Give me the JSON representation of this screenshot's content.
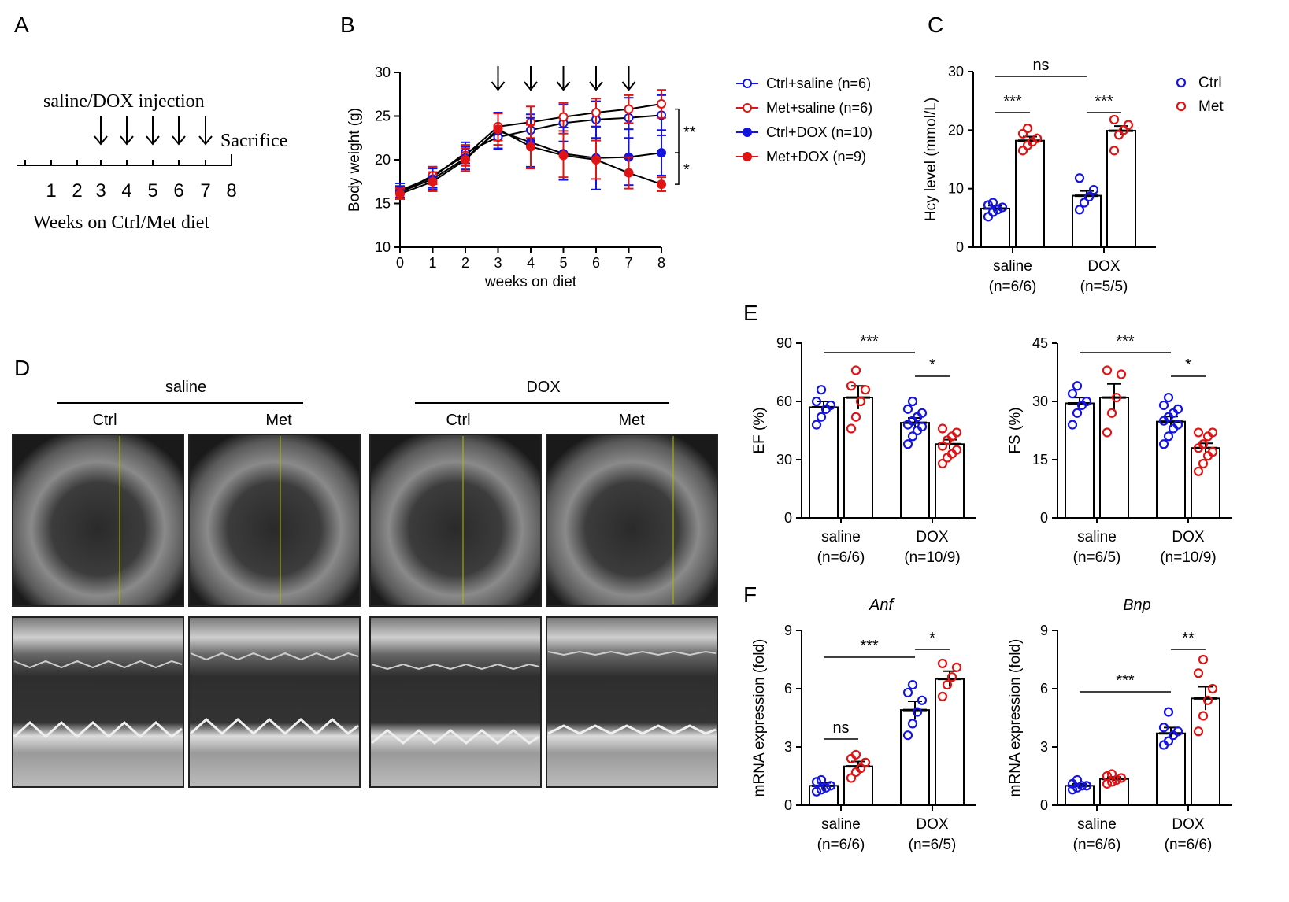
{
  "panels": {
    "A": {
      "letter": "A",
      "injection_label": "saline/DOX injection",
      "sacrifice_label": "Sacrifice",
      "weeks": [
        "1",
        "2",
        "3",
        "4",
        "5",
        "6",
        "7",
        "8"
      ],
      "axis_label": "Weeks on Ctrl/Met diet"
    },
    "B": {
      "letter": "B"
    },
    "C": {
      "letter": "C"
    },
    "D": {
      "letter": "D",
      "group_left": "saline",
      "group_right": "DOX",
      "sub_labels": [
        "Ctrl",
        "Met",
        "Ctrl",
        "Met"
      ]
    },
    "E": {
      "letter": "E"
    },
    "F": {
      "letter": "F"
    }
  },
  "colors": {
    "ctrl": "#1414e0",
    "met": "#e01414",
    "line": "#000000"
  },
  "chart_data": [
    {
      "id": "B",
      "type": "line",
      "xlabel": "weeks on diet",
      "ylabel": "Body weight (g)",
      "xlim": [
        0,
        8
      ],
      "ylim": [
        10,
        30
      ],
      "xticks": [
        "0",
        "1",
        "2",
        "3",
        "4",
        "5",
        "6",
        "7",
        "8"
      ],
      "yticks": [
        "10",
        "15",
        "20",
        "25",
        "30"
      ],
      "injection_weeks": [
        3,
        4,
        5,
        6,
        7
      ],
      "x": [
        0,
        1,
        2,
        3,
        4,
        5,
        6,
        7,
        8
      ],
      "series": [
        {
          "name": "Ctrl+saline (n=6)",
          "color": "#1414e0",
          "filled": false,
          "values": [
            16.5,
            18.0,
            20.8,
            22.6,
            23.4,
            24.2,
            24.6,
            24.8,
            25.1
          ],
          "errors": [
            0.8,
            1.2,
            1.2,
            1.3,
            1.8,
            2.1,
            2.1,
            2.3,
            2.3
          ]
        },
        {
          "name": "Met+saline (n=6)",
          "color": "#e01414",
          "filled": false,
          "values": [
            16.2,
            18.2,
            20.5,
            23.8,
            24.3,
            24.9,
            25.4,
            25.8,
            26.4
          ],
          "errors": [
            0.6,
            1.0,
            1.2,
            1.6,
            1.8,
            1.6,
            1.6,
            1.6,
            1.6
          ]
        },
        {
          "name": "Ctrl+DOX (n=10)",
          "color": "#1414e0",
          "filled": true,
          "values": [
            16.3,
            17.8,
            20.2,
            23.3,
            22.0,
            20.7,
            20.2,
            20.3,
            20.8
          ],
          "errors": [
            0.7,
            1.2,
            1.3,
            2.1,
            2.8,
            3.0,
            3.6,
            3.2,
            2.6
          ]
        },
        {
          "name": "Met+DOX (n=9)",
          "color": "#e01414",
          "filled": true,
          "values": [
            16.1,
            17.5,
            20.0,
            23.5,
            21.5,
            20.5,
            20.0,
            18.5,
            17.2
          ],
          "errors": [
            0.6,
            1.1,
            1.3,
            1.8,
            2.5,
            2.5,
            2.2,
            1.8,
            0.8
          ]
        }
      ],
      "significance": [
        "**",
        "*"
      ]
    },
    {
      "id": "C",
      "type": "bar",
      "ylabel": "Hcy level (mmol/L)",
      "ylim": [
        0,
        30
      ],
      "yticks": [
        "0",
        "10",
        "20",
        "30"
      ],
      "groups": [
        {
          "label": "saline",
          "n": "(n=6/6)"
        },
        {
          "label": "DOX",
          "n": "(n=5/5)"
        }
      ],
      "series": [
        {
          "name": "Ctrl",
          "color": "#1414e0",
          "values": [
            6.6,
            8.8
          ],
          "sem": [
            0.5,
            0.8
          ],
          "points": [
            [
              5.2,
              6.0,
              6.4,
              6.8,
              7.2,
              7.6
            ],
            [
              6.4,
              7.6,
              8.6,
              9.8,
              11.8
            ]
          ]
        },
        {
          "name": "Met",
          "color": "#e01414",
          "values": [
            18.2,
            19.9
          ],
          "sem": [
            0.7,
            0.8
          ],
          "points": [
            [
              16.5,
              17.4,
              18.0,
              18.6,
              19.4,
              20.3
            ],
            [
              16.5,
              19.2,
              20.0,
              20.9,
              21.8
            ]
          ]
        }
      ],
      "brackets": [
        {
          "from": "saline.Ctrl",
          "to": "saline.Met",
          "label": "***"
        },
        {
          "from": "DOX.Ctrl",
          "to": "DOX.Met",
          "label": "***"
        },
        {
          "from": "saline.Ctrl",
          "to": "DOX.Ctrl",
          "label": "ns"
        }
      ]
    },
    {
      "id": "E-EF",
      "type": "bar",
      "ylabel": "EF (%)",
      "ylim": [
        0,
        90
      ],
      "yticks": [
        "0",
        "30",
        "60",
        "90"
      ],
      "groups": [
        {
          "label": "saline",
          "n": "(n=6/6)"
        },
        {
          "label": "DOX",
          "n": "(n=10/9)"
        }
      ],
      "series": [
        {
          "name": "Ctrl",
          "color": "#1414e0",
          "values": [
            57,
            49
          ],
          "sem": [
            3,
            2.5
          ],
          "points": [
            [
              48,
              52,
              56,
              58,
              60,
              66
            ],
            [
              38,
              42,
              45,
              47,
              48,
              50,
              52,
              54,
              56,
              60
            ]
          ]
        },
        {
          "name": "Met",
          "color": "#e01414",
          "values": [
            62,
            38
          ],
          "sem": [
            6,
            2.3
          ],
          "points": [
            [
              46,
              52,
              60,
              66,
              68,
              76
            ],
            [
              28,
              31,
              33,
              35,
              37,
              40,
              42,
              44,
              46
            ]
          ]
        }
      ],
      "brackets": [
        {
          "from": "saline.Ctrl",
          "to": "DOX.Ctrl",
          "label": "***"
        },
        {
          "from": "DOX.Ctrl",
          "to": "DOX.Met",
          "label": "*"
        }
      ]
    },
    {
      "id": "E-FS",
      "type": "bar",
      "ylabel": "FS (%)",
      "ylim": [
        0,
        45
      ],
      "yticks": [
        "0",
        "15",
        "30",
        "45"
      ],
      "groups": [
        {
          "label": "saline",
          "n": "(n=6/5)"
        },
        {
          "label": "DOX",
          "n": "(n=10/9)"
        }
      ],
      "series": [
        {
          "name": "Ctrl",
          "color": "#1414e0",
          "values": [
            29.5,
            24.8
          ],
          "sem": [
            1.5,
            1.3
          ],
          "points": [
            [
              24,
              27,
              29,
              30,
              32,
              34
            ],
            [
              19,
              21,
              23,
              24,
              25,
              26,
              27,
              28,
              29,
              31
            ]
          ]
        },
        {
          "name": "Met",
          "color": "#e01414",
          "values": [
            31,
            18
          ],
          "sem": [
            3.5,
            1.2
          ],
          "points": [
            [
              22,
              27,
              31,
              37,
              38
            ],
            [
              12,
              14,
              16,
              17,
              18,
              19,
              21,
              22,
              22
            ]
          ]
        }
      ],
      "brackets": [
        {
          "from": "saline.Ctrl",
          "to": "DOX.Ctrl",
          "label": "***"
        },
        {
          "from": "DOX.Ctrl",
          "to": "DOX.Met",
          "label": "*"
        }
      ]
    },
    {
      "id": "F-Anf",
      "type": "bar",
      "title": "Anf",
      "ylabel": "mRNA expression (fold)",
      "ylim": [
        0,
        9
      ],
      "yticks": [
        "0",
        "3",
        "6",
        "9"
      ],
      "groups": [
        {
          "label": "saline",
          "n": "(n=6/6)"
        },
        {
          "label": "DOX",
          "n": "(n=6/5)"
        }
      ],
      "series": [
        {
          "name": "Ctrl",
          "color": "#1414e0",
          "values": [
            1.0,
            4.9
          ],
          "sem": [
            0.15,
            0.45
          ],
          "points": [
            [
              0.7,
              0.8,
              0.9,
              1.0,
              1.2,
              1.3
            ],
            [
              3.6,
              4.2,
              4.8,
              5.4,
              5.8,
              6.2
            ]
          ]
        },
        {
          "name": "Met",
          "color": "#e01414",
          "values": [
            2.0,
            6.5
          ],
          "sem": [
            0.25,
            0.4
          ],
          "points": [
            [
              1.4,
              1.7,
              1.9,
              2.2,
              2.4,
              2.6
            ],
            [
              5.6,
              6.2,
              6.6,
              7.1,
              7.3
            ]
          ]
        }
      ],
      "brackets": [
        {
          "from": "saline.Ctrl",
          "to": "saline.Met",
          "label": "ns"
        },
        {
          "from": "saline.Ctrl",
          "to": "DOX.Ctrl",
          "label": "***"
        },
        {
          "from": "DOX.Ctrl",
          "to": "DOX.Met",
          "label": "*"
        }
      ]
    },
    {
      "id": "F-Bnp",
      "type": "bar",
      "title": "Bnp",
      "ylabel": "mRNA expression (fold)",
      "ylim": [
        0,
        9
      ],
      "yticks": [
        "0",
        "3",
        "6",
        "9"
      ],
      "groups": [
        {
          "label": "saline",
          "n": "(n=6/6)"
        },
        {
          "label": "DOX",
          "n": "(n=6/6)"
        }
      ],
      "series": [
        {
          "name": "Ctrl",
          "color": "#1414e0",
          "values": [
            1.0,
            3.7
          ],
          "sem": [
            0.1,
            0.3
          ],
          "points": [
            [
              0.8,
              0.9,
              1.0,
              1.0,
              1.1,
              1.3
            ],
            [
              3.1,
              3.3,
              3.6,
              3.8,
              4.0,
              4.8
            ]
          ]
        },
        {
          "name": "Met",
          "color": "#e01414",
          "values": [
            1.35,
            5.5
          ],
          "sem": [
            0.1,
            0.6
          ],
          "points": [
            [
              1.1,
              1.2,
              1.3,
              1.4,
              1.5,
              1.6
            ],
            [
              3.8,
              4.6,
              5.4,
              6.0,
              6.8,
              7.5
            ]
          ]
        }
      ],
      "brackets": [
        {
          "from": "saline.Ctrl",
          "to": "DOX.Ctrl",
          "label": "***"
        },
        {
          "from": "DOX.Ctrl",
          "to": "DOX.Met",
          "label": "**"
        }
      ]
    }
  ]
}
